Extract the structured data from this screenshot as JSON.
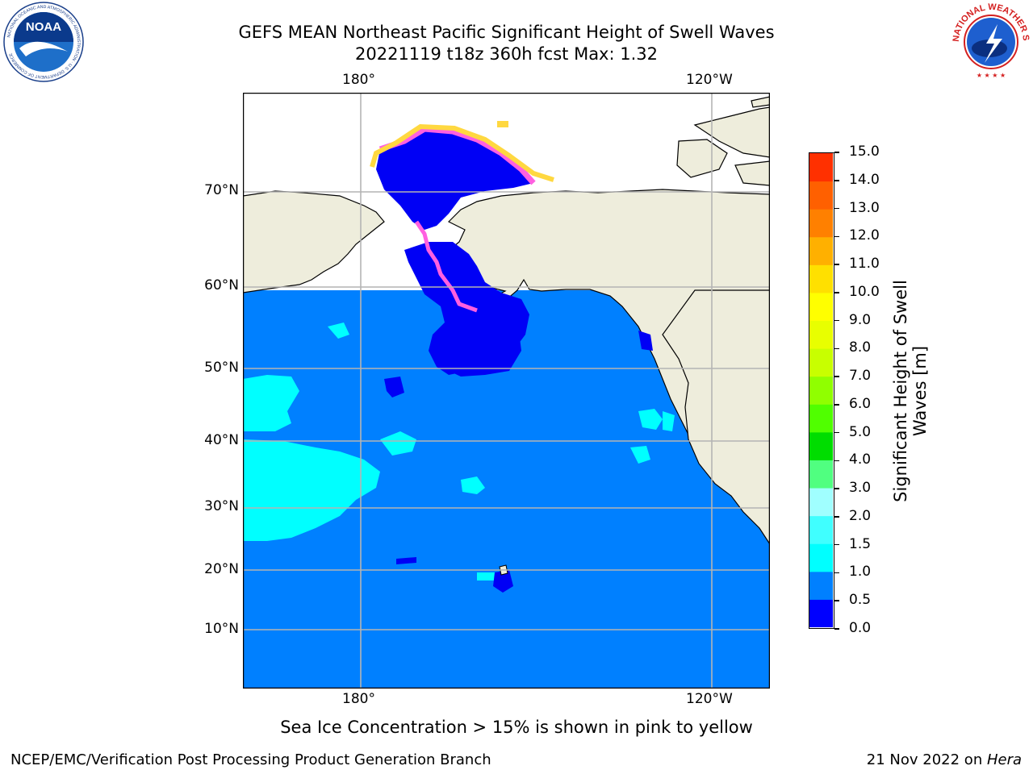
{
  "title": {
    "line1": "GEFS MEAN Northeast Pacific Significant Height of Swell Waves",
    "line2": "20221119 t18z 360h fcst   Max: 1.32"
  },
  "map": {
    "lon_labels": [
      "180°",
      "120°W"
    ],
    "lat_labels": [
      "70°N",
      "60°N",
      "50°N",
      "40°N",
      "30°N",
      "20°N",
      "10°N"
    ],
    "colors": {
      "land": "#eeeddc",
      "ocean_05_10": "#0080ff",
      "ocean_00_05": "#0000f5",
      "swell_10_15": "#00ffff",
      "ice_pink": "#ff60e0",
      "ice_yellow": "#ffd840",
      "grid": "#b4b4b4"
    }
  },
  "colorbar": {
    "label": "Significant Height of Swell Waves [m]",
    "ticks": [
      "15.0",
      "14.0",
      "13.0",
      "12.0",
      "11.0",
      "10.0",
      "9.0",
      "8.0",
      "7.0",
      "6.0",
      "5.0",
      "4.0",
      "3.0",
      "2.0",
      "1.5",
      "1.0",
      "0.5",
      "0.0"
    ],
    "bins_bottom_to_top": [
      "#0000ff",
      "#0080ff",
      "#00ffff",
      "#40ffff",
      "#a0ffff",
      "#50ff80",
      "#00dd00",
      "#50ff00",
      "#90ff00",
      "#c8ff00",
      "#e8ff00",
      "#ffff00",
      "#ffe000",
      "#ffb000",
      "#ff8000",
      "#ff6000",
      "#ff3000",
      "#ff0000"
    ]
  },
  "caption": "Sea Ice Concentration > 15% is shown in pink to yellow",
  "footer": {
    "left": "NCEP/EMC/Verification Post Processing Product Generation Branch",
    "right_date": "21 Nov 2022 on ",
    "right_machine": "Hera"
  },
  "logos": {
    "left": "NOAA",
    "left_ring_text": "NATIONAL OCEANIC AND ATMOSPHERIC ADMINISTRATION · U.S. DEPARTMENT OF COMMERCE",
    "right_ring_text": "NATIONAL WEATHER SERVICE"
  }
}
